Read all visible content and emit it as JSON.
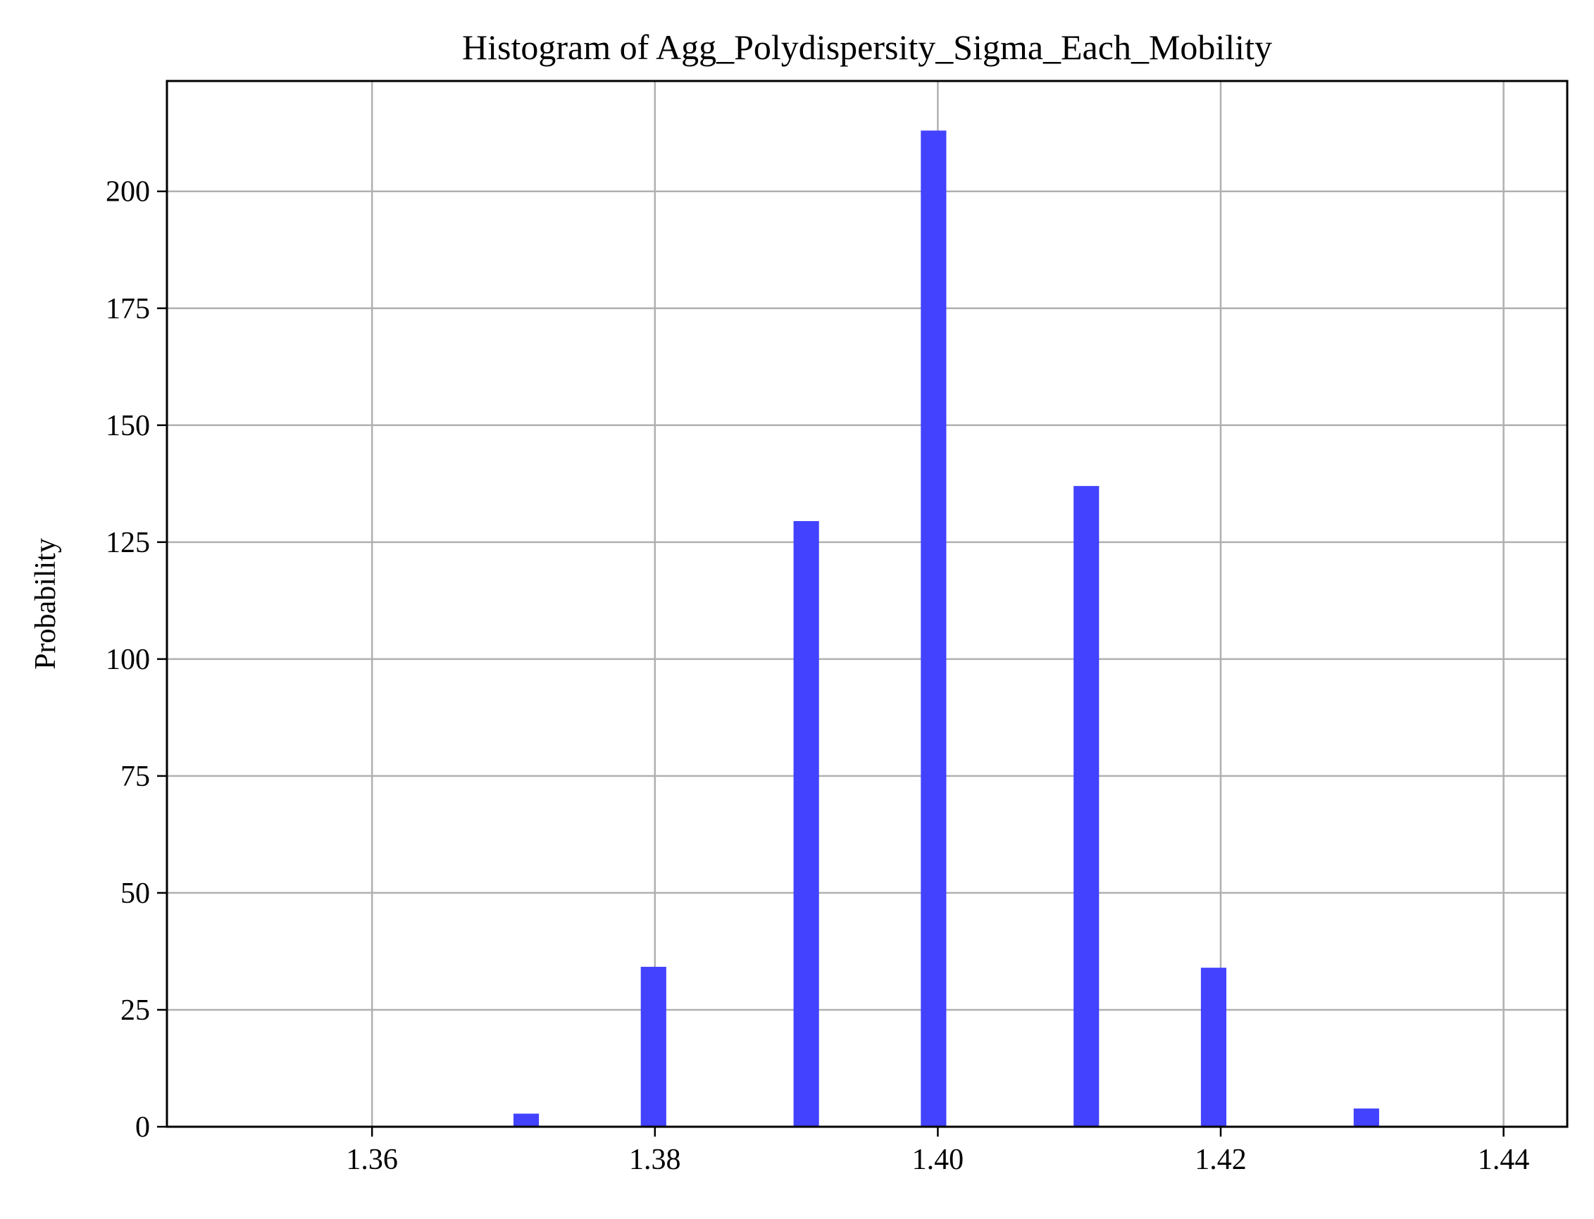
{
  "chart_data": {
    "type": "bar",
    "title": "Histogram of Agg_Polydispersity_Sigma_Each_Mobility",
    "xlabel": "",
    "ylabel": "Probability",
    "xlim": [
      1.3455,
      1.4445
    ],
    "ylim": [
      0,
      223.6
    ],
    "x_ticks": [
      1.36,
      1.38,
      1.4,
      1.42,
      1.44
    ],
    "x_tick_labels": [
      "1.36",
      "1.38",
      "1.40",
      "1.42",
      "1.44"
    ],
    "y_ticks": [
      0,
      25,
      50,
      75,
      100,
      125,
      150,
      175,
      200
    ],
    "y_tick_labels": [
      "0",
      "25",
      "50",
      "75",
      "100",
      "125",
      "150",
      "175",
      "200"
    ],
    "grid": true,
    "bar_color": "#4242ff",
    "bin_width": 0.0018,
    "bins": [
      {
        "x": 1.37,
        "value": 2.8
      },
      {
        "x": 1.379,
        "value": 34.2
      },
      {
        "x": 1.3898,
        "value": 129.5
      },
      {
        "x": 1.3988,
        "value": 213.0
      },
      {
        "x": 1.4096,
        "value": 137.0
      },
      {
        "x": 1.4186,
        "value": 34.0
      },
      {
        "x": 1.4294,
        "value": 3.9
      }
    ]
  }
}
